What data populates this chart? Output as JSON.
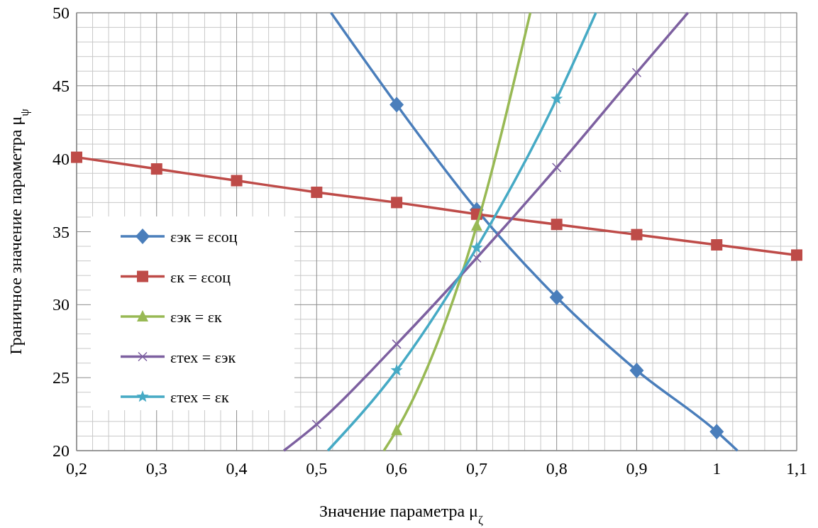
{
  "chart_data": {
    "type": "line",
    "xlabel": "Значение параметра  μ$_{ζ}$",
    "ylabel": "Граничное значение параметра μ$_{ψ}$",
    "xlim": [
      0.2,
      1.1
    ],
    "ylim": [
      20,
      50
    ],
    "xticks": [
      {
        "value": 0.2,
        "label": "0,2"
      },
      {
        "value": 0.3,
        "label": "0,3"
      },
      {
        "value": 0.4,
        "label": "0,4"
      },
      {
        "value": 0.5,
        "label": "0,5"
      },
      {
        "value": 0.6,
        "label": "0,6"
      },
      {
        "value": 0.7,
        "label": "0,7"
      },
      {
        "value": 0.8,
        "label": "0,8"
      },
      {
        "value": 0.9,
        "label": "0,9"
      },
      {
        "value": 1,
        "label": "1"
      },
      {
        "value": 1.1,
        "label": "1,1"
      }
    ],
    "yticks": [
      20,
      25,
      30,
      35,
      40,
      45,
      50
    ],
    "grid": true,
    "legend": "left",
    "line_style": "solid",
    "series": [
      {
        "name": "εэк = εсоц",
        "color": "#4a7ebb",
        "marker": "diamond",
        "x": [
          0.518,
          0.6,
          0.7,
          0.8,
          0.9,
          1.0,
          1.026
        ],
        "values": [
          50,
          43.7,
          36.5,
          30.5,
          25.5,
          21.3,
          20
        ]
      },
      {
        "name": "εк = εсоц",
        "color": "#be4b48",
        "marker": "square",
        "x": [
          0.2,
          0.3,
          0.4,
          0.5,
          0.6,
          0.7,
          0.8,
          0.9,
          1.0,
          1.1
        ],
        "values": [
          40.1,
          39.3,
          38.5,
          37.7,
          37.0,
          36.2,
          35.5,
          34.8,
          34.1,
          33.4
        ]
      },
      {
        "name": "εэк = εк",
        "color": "#98b954",
        "marker": "triangle",
        "x": [
          0.584,
          0.6,
          0.7,
          0.767
        ],
        "values": [
          20,
          21.4,
          35.4,
          50
        ]
      },
      {
        "name": "εтех = εэк",
        "color": "#7d60a0",
        "marker": "cross",
        "x": [
          0.459,
          0.5,
          0.6,
          0.7,
          0.8,
          0.9,
          0.964
        ],
        "values": [
          20,
          21.8,
          27.3,
          33.2,
          39.4,
          45.9,
          50
        ]
      },
      {
        "name": "εтех = εк",
        "color": "#46aac5",
        "marker": "star",
        "x": [
          0.514,
          0.6,
          0.7,
          0.8,
          0.849
        ],
        "values": [
          20,
          25.5,
          33.9,
          44.1,
          50
        ]
      }
    ]
  }
}
